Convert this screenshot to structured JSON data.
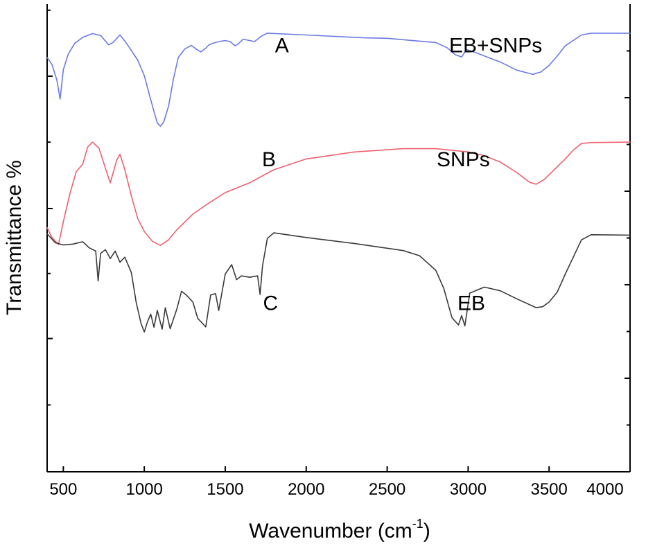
{
  "chart_data": {
    "type": "line",
    "xlabel": "Wavenumber (cm",
    "xlabel_superscript": "-1",
    "xlabel_suffix": ")",
    "ylabel": "Transmittance %",
    "xlim": [
      400,
      4000
    ],
    "xticks": [
      500,
      1000,
      1500,
      2000,
      2500,
      3000,
      3500,
      4000
    ],
    "ylim": [
      0,
      100
    ],
    "grid": false,
    "letter_labels": [
      "A",
      "B",
      "C"
    ],
    "series": [
      {
        "name": "EB+SNPs",
        "letter": "A",
        "color": "#6b79e6",
        "x": [
          400,
          430,
          460,
          480,
          500,
          530,
          570,
          620,
          680,
          730,
          780,
          810,
          850,
          880,
          920,
          960,
          1000,
          1030,
          1060,
          1080,
          1100,
          1120,
          1150,
          1180,
          1210,
          1250,
          1290,
          1320,
          1350,
          1380,
          1400,
          1430,
          1460,
          1500,
          1530,
          1560,
          1580,
          1610,
          1640,
          1680,
          1700,
          1720,
          1760,
          2000,
          2360,
          2500,
          2800,
          2870,
          2920,
          2960,
          2990,
          3050,
          3200,
          3300,
          3400,
          3450,
          3500,
          3550,
          3600,
          3700,
          3760,
          4000
        ],
        "y": [
          88.6,
          87.1,
          83.8,
          79.7,
          86.0,
          89.3,
          91.6,
          92.9,
          93.7,
          93.3,
          91.3,
          91.9,
          93.4,
          92.1,
          90.1,
          88.0,
          84.7,
          80.8,
          77.0,
          74.6,
          73.9,
          74.8,
          78.2,
          84.0,
          88.6,
          90.4,
          91.2,
          90.4,
          89.8,
          90.6,
          91.3,
          91.7,
          92.0,
          92.2,
          92.0,
          91.1,
          91.5,
          92.5,
          92.3,
          92.0,
          92.5,
          93.1,
          93.8,
          93.4,
          92.8,
          92.7,
          91.8,
          90.7,
          89.2,
          88.7,
          90.3,
          89.6,
          87.6,
          85.9,
          85.0,
          85.5,
          86.9,
          88.9,
          91.1,
          93.4,
          93.8,
          93.8
        ]
      },
      {
        "name": "SNPs",
        "letter": "B",
        "color": "#ee5f6e",
        "x": [
          400,
          430,
          470,
          500,
          540,
          580,
          620,
          650,
          680,
          720,
          760,
          790,
          830,
          850,
          880,
          920,
          960,
          1000,
          1050,
          1100,
          1150,
          1200,
          1300,
          1400,
          1500,
          1650,
          1800,
          2000,
          2300,
          2600,
          2800,
          3000,
          3100,
          3200,
          3300,
          3380,
          3420,
          3470,
          3520,
          3600,
          3650,
          3700,
          3760,
          4000
        ],
        "y": [
          52.2,
          50.1,
          48.6,
          53.5,
          59.4,
          64.2,
          65.8,
          69.4,
          70.5,
          69.2,
          64.9,
          61.8,
          66.7,
          67.9,
          64.6,
          59.0,
          54.1,
          51.4,
          49.3,
          48.4,
          49.6,
          51.7,
          55.1,
          57.5,
          59.7,
          61.8,
          64.6,
          66.9,
          68.4,
          69.1,
          69.1,
          68.4,
          67.6,
          66.2,
          64.0,
          61.9,
          61.5,
          62.5,
          64.2,
          66.9,
          68.8,
          70.2,
          70.4,
          70.5
        ]
      },
      {
        "name": "EB",
        "letter": "C",
        "color": "#3a3a3a",
        "x": [
          400,
          450,
          500,
          560,
          620,
          660,
          700,
          715,
          730,
          760,
          790,
          820,
          850,
          880,
          920,
          950,
          980,
          1000,
          1020,
          1040,
          1060,
          1080,
          1110,
          1130,
          1160,
          1200,
          1230,
          1260,
          1300,
          1330,
          1380,
          1410,
          1440,
          1460,
          1500,
          1540,
          1570,
          1600,
          1650,
          1700,
          1715,
          1730,
          1760,
          1800,
          2000,
          2300,
          2600,
          2700,
          2800,
          2850,
          2900,
          2940,
          2960,
          2980,
          3010,
          3100,
          3200,
          3300,
          3420,
          3460,
          3500,
          3550,
          3600,
          3700,
          3760,
          4000
        ],
        "y": [
          50.9,
          49.0,
          48.5,
          48.7,
          49.2,
          47.9,
          47.2,
          40.8,
          46.7,
          47.5,
          45.6,
          47.2,
          44.8,
          45.9,
          42.6,
          36.2,
          31.7,
          29.9,
          32.1,
          33.7,
          30.9,
          34.5,
          30.5,
          35.1,
          30.6,
          34.7,
          38.6,
          37.8,
          36.3,
          32.8,
          31.0,
          37.8,
          38.1,
          34.5,
          42.3,
          44.3,
          41.1,
          41.9,
          41.6,
          41.9,
          37.9,
          44.0,
          49.9,
          51.1,
          50.1,
          48.8,
          47.3,
          46.2,
          43.1,
          39.2,
          33.0,
          31.4,
          33.4,
          31.2,
          38.2,
          39.5,
          38.7,
          37.0,
          35.1,
          35.3,
          36.3,
          38.4,
          42.3,
          49.6,
          50.7,
          50.6
        ]
      }
    ]
  }
}
